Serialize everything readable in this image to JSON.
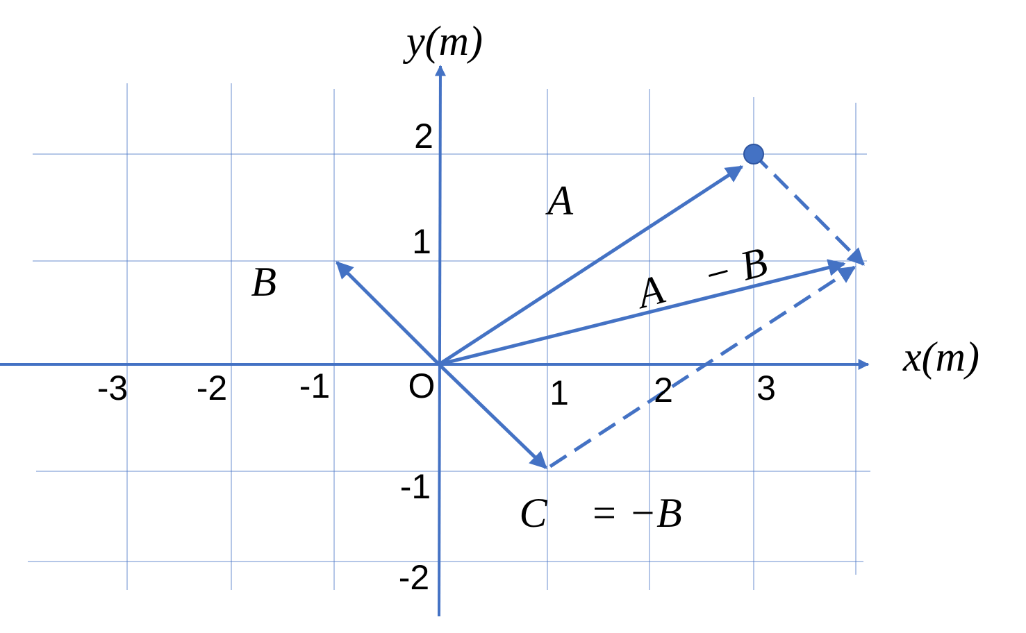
{
  "axes": {
    "x_label": "x(m)",
    "y_label": "y(m)",
    "origin_label": "O",
    "x_tick_labels": [
      "-3",
      "-2",
      "-1",
      "1",
      "2",
      "3"
    ],
    "y_tick_labels": [
      "2",
      "1",
      "-1",
      "-2"
    ]
  },
  "vectors": [
    {
      "label": "A⃗"
    },
    {
      "label": "B⃗"
    },
    {
      "label": "C⃗ = −B⃗"
    },
    {
      "label": "A⃗ − B⃗"
    }
  ]
}
